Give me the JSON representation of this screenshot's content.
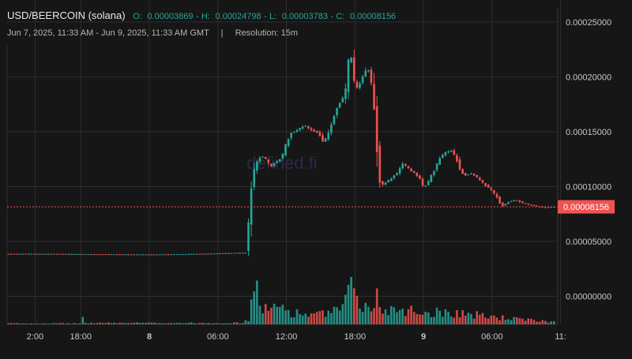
{
  "header": {
    "symbol": "USD/BEERCOIN (solana)",
    "open_label": "O:",
    "open": "0.00003869",
    "high_label": "H:",
    "high": "0.00024798",
    "low_label": "L:",
    "low": "0.00003783",
    "close_label": "C:",
    "close": "0.00008156",
    "range": "Jun 7, 2025, 11:33 AM - Jun 9, 2025, 11:33 AM GMT",
    "separator": "|",
    "resolution": "Resolution: 15m"
  },
  "watermark": "defined.fi",
  "colors": {
    "background": "#161616",
    "grid": "#2e2e2e",
    "up": "#26a69a",
    "down": "#ef5350",
    "text": "#c8c8c8",
    "symbol": "#e8e8e8",
    "values": "#26a69a",
    "price_tag": "#ef5350"
  },
  "chart_data": {
    "type": "candlestick",
    "price_axis": {
      "ticks": [
        {
          "value": 0.00025,
          "label": "0.00025000"
        },
        {
          "value": 0.0002,
          "label": "0.00020000"
        },
        {
          "value": 0.00015,
          "label": "0.00015000"
        },
        {
          "value": 0.0001,
          "label": "0.00010000"
        },
        {
          "value": 5e-05,
          "label": "0.00005000"
        },
        {
          "value": 0.0,
          "label": "0.00000000"
        }
      ],
      "ylim": [
        -2.55e-05,
        0.00027
      ]
    },
    "time_axis": {
      "ticks": [
        {
          "hours": 2.45,
          "label": "2:00",
          "bold": false
        },
        {
          "hours": 6.45,
          "label": "18:00",
          "bold": false
        },
        {
          "hours": 12.45,
          "label": "8",
          "bold": true
        },
        {
          "hours": 18.45,
          "label": "06:00",
          "bold": false
        },
        {
          "hours": 24.45,
          "label": "12:00",
          "bold": false
        },
        {
          "hours": 30.45,
          "label": "18:00",
          "bold": false
        },
        {
          "hours": 36.45,
          "label": "9",
          "bold": true
        },
        {
          "hours": 42.45,
          "label": "06:00",
          "bold": false
        },
        {
          "hours": 48.45,
          "label": "11:",
          "bold": false
        }
      ],
      "xlim": [
        0,
        48.2
      ]
    },
    "last_price": {
      "value": 8.156e-05,
      "label": "0.00008156"
    },
    "grid": true,
    "volume_overlay": true,
    "price_path": [
      [
        0.0,
        3.87e-05
      ],
      [
        4.0,
        3.87e-05
      ],
      [
        5.3,
        3.86e-05
      ],
      [
        6.5,
        3.84e-05
      ],
      [
        9.0,
        3.83e-05
      ],
      [
        12.0,
        3.81e-05
      ],
      [
        15.0,
        3.83e-05
      ],
      [
        17.5,
        3.88e-05
      ],
      [
        20.0,
        3.95e-05
      ],
      [
        21.0,
        3.97e-05
      ],
      [
        21.2,
        5.5e-05
      ],
      [
        21.4,
        9.5e-05
      ],
      [
        21.6,
        0.000105
      ],
      [
        21.8,
        0.000118
      ],
      [
        22.0,
        0.000122
      ],
      [
        22.3,
        0.000128
      ],
      [
        22.6,
        0.000127
      ],
      [
        23.2,
        0.000118
      ],
      [
        23.6,
        0.000122
      ],
      [
        24.0,
        0.000125
      ],
      [
        24.3,
        0.00013
      ],
      [
        24.6,
        0.000141
      ],
      [
        25.0,
        0.000149
      ],
      [
        25.6,
        0.000152
      ],
      [
        26.2,
        0.000156
      ],
      [
        26.8,
        0.000151
      ],
      [
        27.4,
        0.000149
      ],
      [
        27.8,
        0.000139
      ],
      [
        28.2,
        0.000148
      ],
      [
        28.6,
        0.00016
      ],
      [
        29.0,
        0.000172
      ],
      [
        29.5,
        0.00018
      ],
      [
        29.9,
        0.000195
      ],
      [
        30.1,
        0.00023
      ],
      [
        30.5,
        0.000195
      ],
      [
        30.8,
        0.000188
      ],
      [
        31.1,
        0.000196
      ],
      [
        31.4,
        0.000204
      ],
      [
        31.8,
        0.000207
      ],
      [
        32.1,
        0.00019
      ],
      [
        32.4,
        0.00015
      ],
      [
        32.6,
        0.00012
      ],
      [
        32.8,
        0.0001
      ],
      [
        33.2,
        0.000103
      ],
      [
        33.8,
        0.000108
      ],
      [
        34.3,
        0.000113
      ],
      [
        34.8,
        0.000121
      ],
      [
        35.3,
        0.000116
      ],
      [
        35.8,
        0.000112
      ],
      [
        36.2,
        0.000108
      ],
      [
        36.6,
        9.8e-05
      ],
      [
        37.0,
        0.000105
      ],
      [
        37.5,
        0.000115
      ],
      [
        38.0,
        0.000126
      ],
      [
        38.5,
        0.000131
      ],
      [
        39.0,
        0.000133
      ],
      [
        39.4,
        0.000127
      ],
      [
        39.8,
        0.000114
      ],
      [
        40.2,
        0.00011
      ],
      [
        40.8,
        0.000112
      ],
      [
        41.4,
        0.000107
      ],
      [
        42.0,
        0.000101
      ],
      [
        42.6,
        9.6e-05
      ],
      [
        43.0,
        9e-05
      ],
      [
        43.4,
        8.2e-05
      ],
      [
        44.0,
        8.6e-05
      ],
      [
        44.6,
        8.8e-05
      ],
      [
        45.2,
        8.5e-05
      ],
      [
        46.0,
        8.3e-05
      ],
      [
        47.0,
        8.1e-05
      ],
      [
        48.2,
        8.16e-05
      ]
    ],
    "volume_path": [
      [
        0.0,
        0.02
      ],
      [
        6.3,
        0.02
      ],
      [
        6.5,
        0.15
      ],
      [
        6.7,
        0.03
      ],
      [
        20.5,
        0.03
      ],
      [
        21.0,
        0.1
      ],
      [
        21.2,
        0.5
      ],
      [
        21.4,
        0.7
      ],
      [
        21.6,
        0.9
      ],
      [
        21.8,
        0.6
      ],
      [
        22.2,
        0.4
      ],
      [
        23.0,
        0.3
      ],
      [
        24.0,
        0.4
      ],
      [
        24.4,
        0.3
      ],
      [
        25.0,
        0.25
      ],
      [
        27.0,
        0.2
      ],
      [
        29.0,
        0.3
      ],
      [
        29.6,
        0.5
      ],
      [
        30.0,
        1.0
      ],
      [
        30.3,
        0.9
      ],
      [
        30.6,
        0.55
      ],
      [
        31.0,
        0.4
      ],
      [
        32.0,
        0.3
      ],
      [
        32.3,
        0.7
      ],
      [
        32.6,
        0.3
      ],
      [
        34.0,
        0.35
      ],
      [
        35.5,
        0.3
      ],
      [
        36.5,
        0.25
      ],
      [
        38.0,
        0.28
      ],
      [
        39.5,
        0.25
      ],
      [
        41.0,
        0.2
      ],
      [
        43.0,
        0.15
      ],
      [
        45.0,
        0.1
      ],
      [
        48.2,
        0.05
      ]
    ]
  }
}
